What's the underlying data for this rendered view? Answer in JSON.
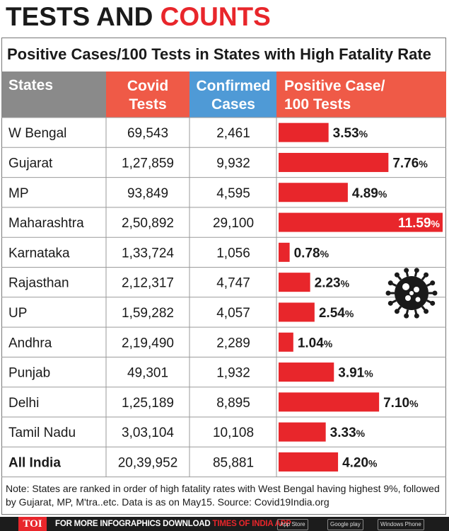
{
  "headline": {
    "part1": "TESTS AND ",
    "part2": "COUNTS"
  },
  "chart_data": {
    "type": "table",
    "title": "Positive Cases/100 Tests in States with High Fatality Rate",
    "columns": [
      "States",
      "Covid Tests",
      "Confirmed Cases",
      "Positive Case/ 100 Tests"
    ],
    "rows": [
      {
        "state": "W Bengal",
        "tests": "69,543",
        "cases": "2,461",
        "rate": 3.53,
        "rate_label": "3.53"
      },
      {
        "state": "Gujarat",
        "tests": "1,27,859",
        "cases": "9,932",
        "rate": 7.76,
        "rate_label": "7.76"
      },
      {
        "state": "MP",
        "tests": "93,849",
        "cases": "4,595",
        "rate": 4.89,
        "rate_label": "4.89"
      },
      {
        "state": "Maharashtra",
        "tests": "2,50,892",
        "cases": "29,100",
        "rate": 11.59,
        "rate_label": "11.59"
      },
      {
        "state": "Karnataka",
        "tests": "1,33,724",
        "cases": "1,056",
        "rate": 0.78,
        "rate_label": "0.78"
      },
      {
        "state": "Rajasthan",
        "tests": "2,12,317",
        "cases": "4,747",
        "rate": 2.23,
        "rate_label": "2.23"
      },
      {
        "state": "UP",
        "tests": "1,59,282",
        "cases": "4,057",
        "rate": 2.54,
        "rate_label": "2.54"
      },
      {
        "state": "Andhra",
        "tests": "2,19,490",
        "cases": "2,289",
        "rate": 1.04,
        "rate_label": "1.04"
      },
      {
        "state": "Punjab",
        "tests": "49,301",
        "cases": "1,932",
        "rate": 3.91,
        "rate_label": "3.91"
      },
      {
        "state": "Delhi",
        "tests": "1,25,189",
        "cases": "8,895",
        "rate": 7.1,
        "rate_label": "7.10"
      },
      {
        "state": "Tamil Nadu",
        "tests": "3,03,104",
        "cases": "10,108",
        "rate": 3.33,
        "rate_label": "3.33"
      },
      {
        "state": "All India",
        "tests": "20,39,952",
        "cases": "85,881",
        "rate": 4.2,
        "rate_label": "4.20"
      }
    ],
    "percent_sign": "%",
    "colors": {
      "states_header": "#8a8a8a",
      "tests_header": "#ef5a47",
      "cases_header": "#4f9ad6",
      "rate_header": "#ef5a47",
      "bar": "#e8262b",
      "grid": "#9a9a9a"
    }
  },
  "note": "Note: States are ranked in order of high fatality rates with West Bengal having highest 9%, followed by Gujarat, MP, M'tra..etc. Data is as on May15. Source: Covid19India.org",
  "footer": {
    "logo": "TOI",
    "message_prefix": "FOR MORE  INFOGRAPHICS DOWNLOAD ",
    "message_brand": "TIMES OF INDIA  APP",
    "stores": [
      "App Store",
      "Google play",
      "Windows Phone"
    ]
  }
}
